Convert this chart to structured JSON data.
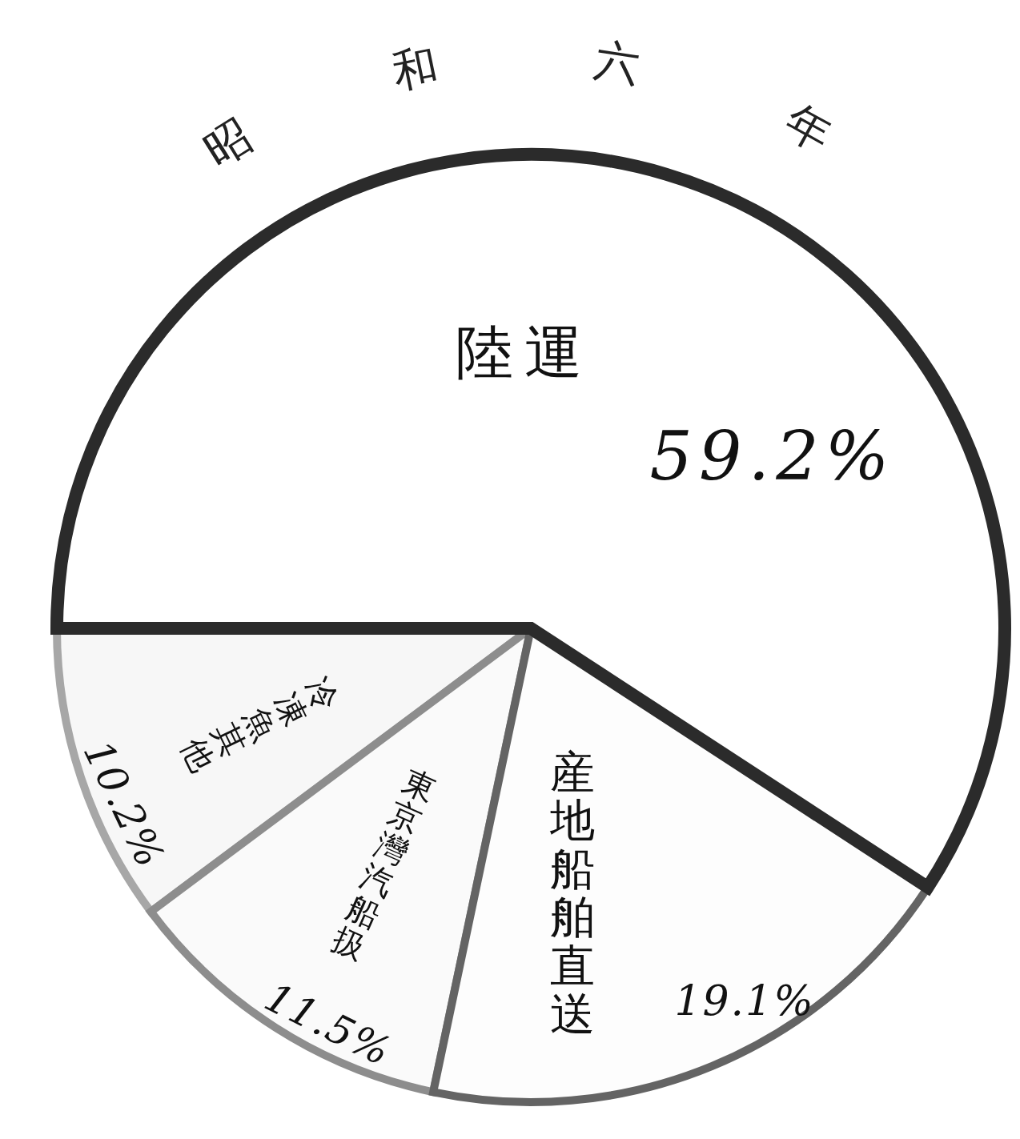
{
  "chart_data": {
    "type": "pie",
    "title": "昭和六年",
    "categories": [
      "陸運",
      "産地船舶直送",
      "東京灣汽船扱",
      "冷凍魚其他"
    ],
    "values": [
      59.2,
      19.1,
      11.5,
      10.2
    ],
    "value_labels": [
      "59.2%",
      "19.1%",
      "11.5%",
      "10.2%"
    ],
    "colors": [
      "#ffffff",
      "#fdfdfd",
      "#fafafa",
      "#f7f7f7"
    ]
  }
}
